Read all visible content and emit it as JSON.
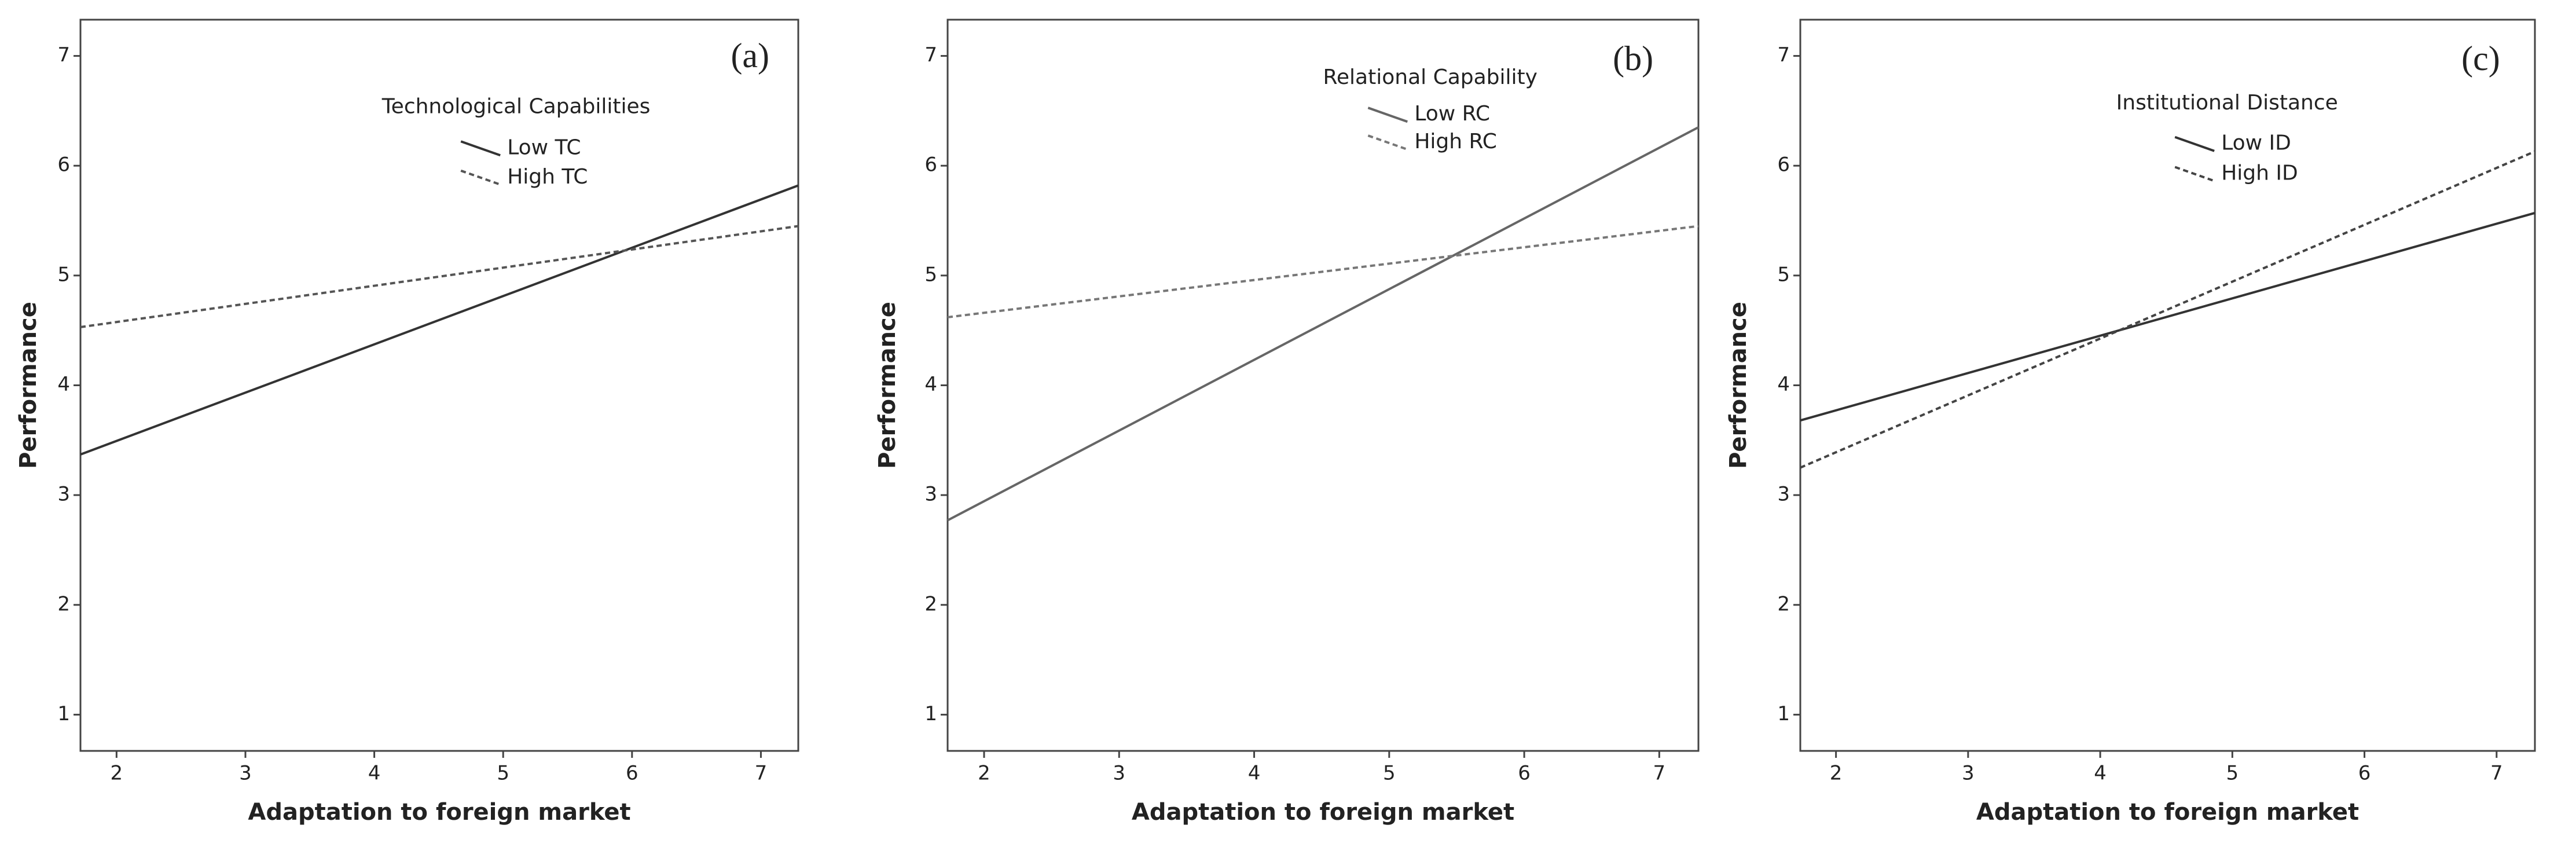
{
  "chart_data": [
    {
      "type": "line",
      "panel_label": "(a)",
      "legend_title": "Technological Capabilities",
      "xlabel": "Adaptation to foreign market",
      "ylabel": "Performance",
      "x": [
        1.72,
        7.29
      ],
      "xlim": [
        1.72,
        7.29
      ],
      "xticks": [
        2,
        3,
        4,
        5,
        6,
        7
      ],
      "ylim": [
        0.67,
        7.33
      ],
      "yticks": [
        1,
        2,
        3,
        4,
        5,
        6,
        7
      ],
      "series": [
        {
          "name": "Low TC",
          "color": "#333333",
          "style": "solid",
          "values": [
            3.37,
            5.82
          ]
        },
        {
          "name": "High TC",
          "color": "#555555",
          "style": "dashed",
          "values": [
            4.53,
            5.45
          ]
        }
      ]
    },
    {
      "type": "line",
      "panel_label": "(b)",
      "legend_title": "Relational Capability",
      "xlabel": "Adaptation to foreign market",
      "ylabel": "Performance",
      "x": [
        1.73,
        7.29
      ],
      "xlim": [
        1.73,
        7.29
      ],
      "xticks": [
        2,
        3,
        4,
        5,
        6,
        7
      ],
      "ylim": [
        0.67,
        7.33
      ],
      "yticks": [
        1,
        2,
        3,
        4,
        5,
        6,
        7
      ],
      "series": [
        {
          "name": "Low RC",
          "color": "#666666",
          "style": "solid",
          "values": [
            2.77,
            6.35
          ]
        },
        {
          "name": "High RC",
          "color": "#777777",
          "style": "dashed",
          "values": [
            4.62,
            5.45
          ]
        }
      ]
    },
    {
      "type": "line",
      "panel_label": "(c)",
      "legend_title": "Institutional Distance",
      "xlabel": "Adaptation to foreign market",
      "ylabel": "Performance",
      "x": [
        1.73,
        7.29
      ],
      "xlim": [
        1.73,
        7.29
      ],
      "xticks": [
        2,
        3,
        4,
        5,
        6,
        7
      ],
      "ylim": [
        0.67,
        7.33
      ],
      "yticks": [
        1,
        2,
        3,
        4,
        5,
        6,
        7
      ],
      "series": [
        {
          "name": "Low ID",
          "color": "#333333",
          "style": "solid",
          "values": [
            3.68,
            5.57
          ]
        },
        {
          "name": "High ID",
          "color": "#444444",
          "style": "dashed",
          "values": [
            3.25,
            6.13
          ]
        }
      ]
    }
  ]
}
